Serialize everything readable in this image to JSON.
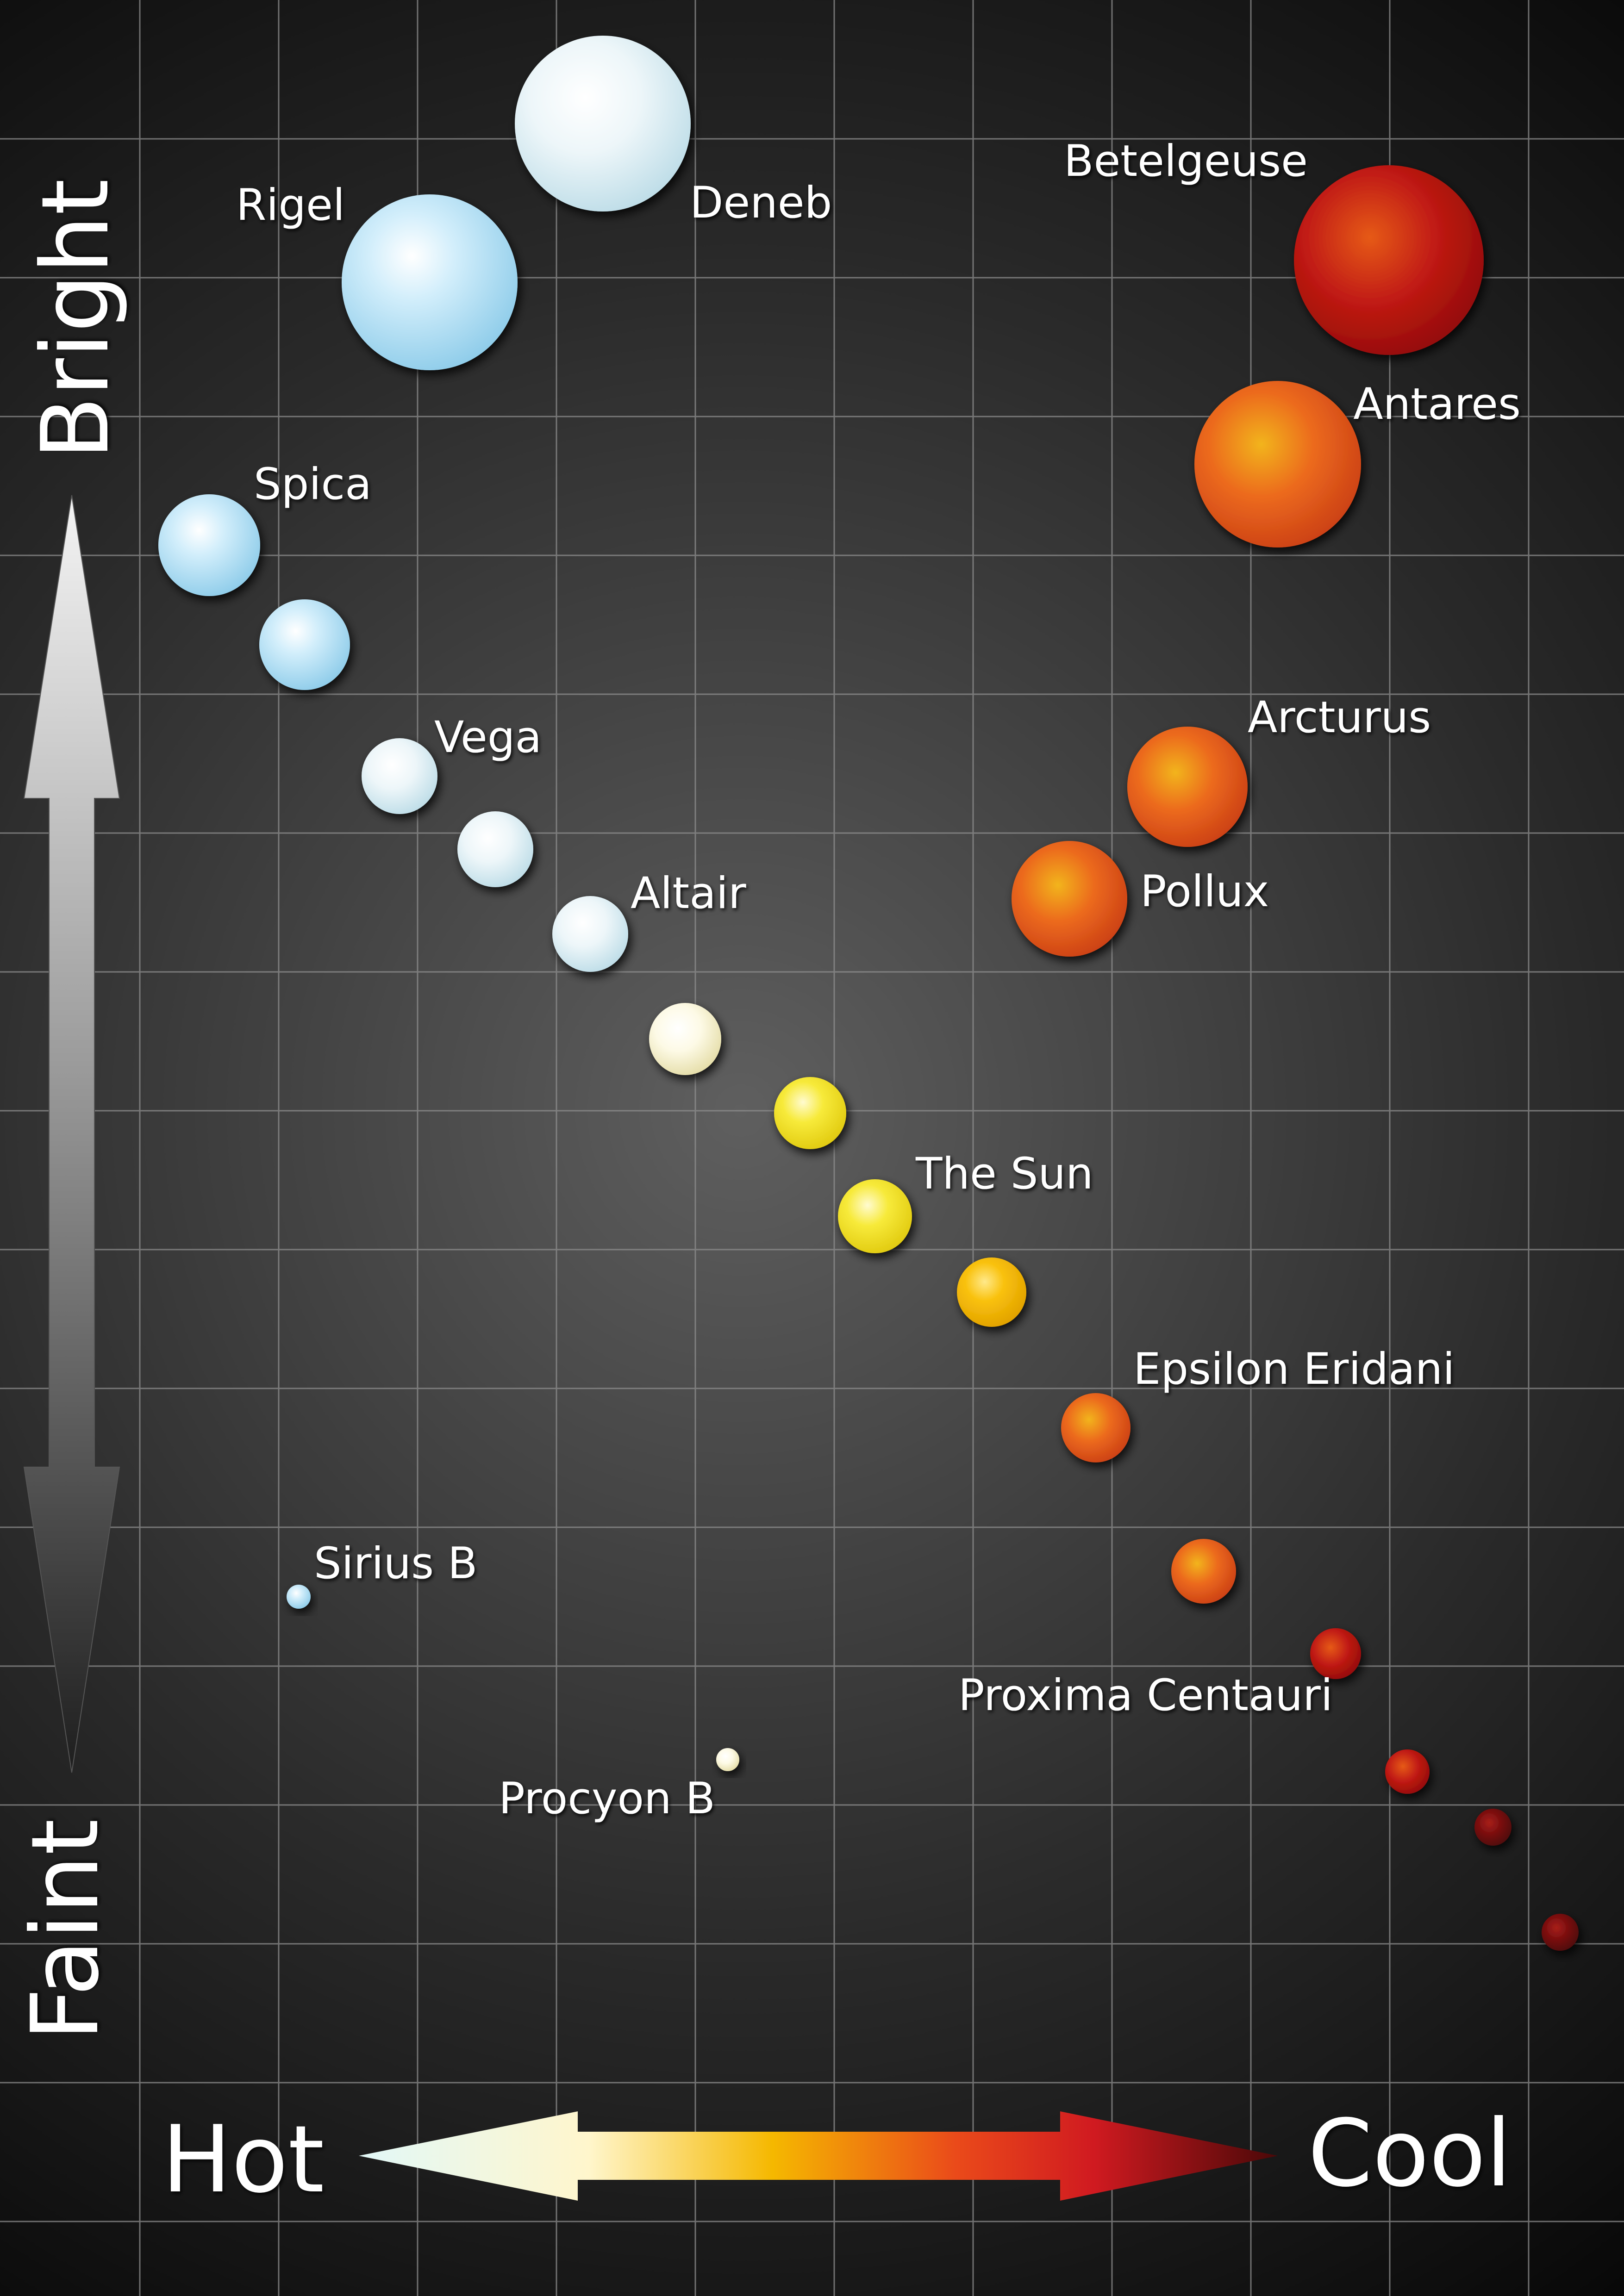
{
  "axes": {
    "y_top_label": "Bright",
    "y_bottom_label": "Faint",
    "x_left_label": "Hot",
    "x_right_label": "Cool"
  },
  "colors": {
    "background_center": "#5e5e5e",
    "background_edge": "#050505",
    "grid": "#9a9a9a",
    "text": "#ffffff",
    "hot_arrow_start": "#dff7f7",
    "hot_arrow_end": "#6a0d10",
    "blue_star": "#a8d8ef",
    "white_star": "#dcecf2",
    "yellow_star": "#f3e21e",
    "orange_star": "#e95a1c",
    "red_star": "#b50e10",
    "dark_red_star": "#6a0b0e"
  },
  "stars": [
    {
      "name": "Deneb",
      "type": "white"
    },
    {
      "name": "Rigel",
      "type": "blue"
    },
    {
      "name": "Betelgeuse",
      "type": "red"
    },
    {
      "name": "Antares",
      "type": "orange"
    },
    {
      "name": "Spica",
      "type": "blue"
    },
    {
      "name": "",
      "type": "blue"
    },
    {
      "name": "Vega",
      "type": "white"
    },
    {
      "name": "",
      "type": "white"
    },
    {
      "name": "Altair",
      "type": "white"
    },
    {
      "name": "Arcturus",
      "type": "orange"
    },
    {
      "name": "Pollux",
      "type": "orange"
    },
    {
      "name": "",
      "type": "cream"
    },
    {
      "name": "",
      "type": "yellow"
    },
    {
      "name": "The Sun",
      "type": "yellow"
    },
    {
      "name": "",
      "type": "gold"
    },
    {
      "name": "Epsilon Eridani",
      "type": "orange"
    },
    {
      "name": "",
      "type": "orange"
    },
    {
      "name": "",
      "type": "red"
    },
    {
      "name": "Proxima Centauri",
      "type": "red"
    },
    {
      "name": "",
      "type": "darkred"
    },
    {
      "name": "",
      "type": "darkred"
    },
    {
      "name": "Sirius B",
      "type": "blue"
    },
    {
      "name": "Procyon B",
      "type": "cream"
    }
  ]
}
